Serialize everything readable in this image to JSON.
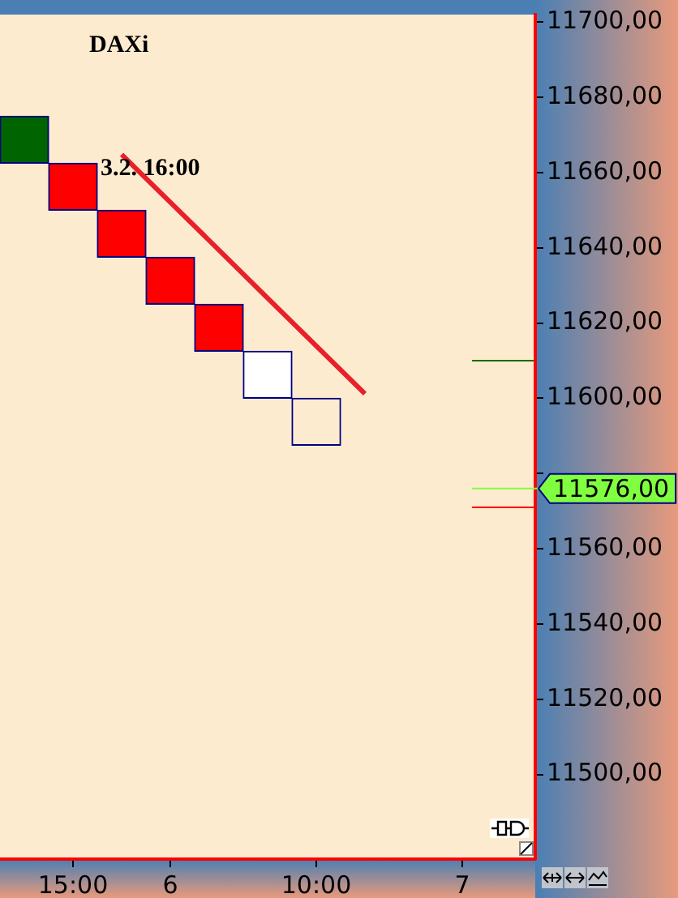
{
  "chart_data": {
    "type": "bar",
    "title": "DAXi",
    "annotations": [
      "3.2. 16:00"
    ],
    "categories": [
      null,
      "15:00",
      null,
      "6",
      null,
      null,
      "10:00",
      null,
      null,
      "7",
      null
    ],
    "series": [
      {
        "values": [
          12.5,
          12.5,
          12.5,
          12.5,
          12.5,
          12.5,
          12.5,
          null,
          null,
          null,
          null
        ],
        "base": [
          11662.5,
          11650,
          11637.5,
          11625,
          11612.5,
          11600,
          11587.5,
          null,
          null,
          null,
          null
        ],
        "colors": [
          "#006400",
          "#ff0000",
          "#ff0000",
          "#ff0000",
          "#ff0000",
          "#ffffff",
          "#fdebd0",
          null,
          null,
          null,
          null
        ]
      },
      {
        "type": "line",
        "values": [
          null,
          null,
          11664.8,
          11652.1,
          11639.4,
          11626.6,
          11613.9,
          11601.2,
          null,
          null,
          null
        ],
        "color": "#e8202a"
      }
    ],
    "ylim": [
      11477.5,
      11702
    ],
    "yticks": [
      {
        "value": 11500,
        "label": "11500,00"
      },
      {
        "value": 11520,
        "label": "11520,00"
      },
      {
        "value": 11540,
        "label": "11540,00"
      },
      {
        "value": 11560,
        "label": "11560,00"
      },
      {
        "value": 11580,
        "label": null
      },
      {
        "value": 11600,
        "label": "11600,00"
      },
      {
        "value": 11620,
        "label": "11620,00"
      },
      {
        "value": 11640,
        "label": "11640,00"
      },
      {
        "value": 11660,
        "label": "11660,00"
      },
      {
        "value": 11680,
        "label": "11680,00"
      },
      {
        "value": 11700,
        "label": "11700,00"
      }
    ],
    "ref_lines": [
      {
        "axis": "y",
        "value": 11610,
        "color": "#007000"
      },
      {
        "axis": "y",
        "value": 11571,
        "color": "#ff0000"
      },
      {
        "axis": "y",
        "value": 11576,
        "label": "11576,00",
        "color": "#80ff40"
      }
    ],
    "grid": false,
    "legend": false,
    "marker": "none"
  }
}
